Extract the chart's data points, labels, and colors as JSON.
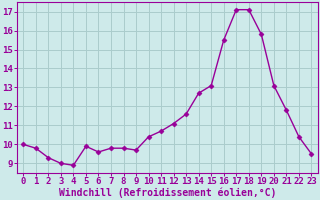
{
  "x": [
    0,
    1,
    2,
    3,
    4,
    5,
    6,
    7,
    8,
    9,
    10,
    11,
    12,
    13,
    14,
    15,
    16,
    17,
    18,
    19,
    20,
    21,
    22,
    23
  ],
  "y": [
    10.0,
    9.8,
    9.3,
    9.0,
    8.9,
    9.9,
    9.6,
    9.8,
    9.8,
    9.7,
    10.4,
    10.7,
    11.1,
    11.6,
    12.7,
    13.1,
    15.5,
    17.1,
    17.1,
    15.8,
    13.1,
    11.8,
    10.4,
    9.5
  ],
  "line_color": "#990099",
  "marker": "D",
  "marker_size": 2.5,
  "line_width": 1.0,
  "bg_color": "#ceeaea",
  "grid_color": "#aacccc",
  "xlabel": "Windchill (Refroidissement éolien,°C)",
  "xlabel_fontsize": 7,
  "tick_fontsize": 6.5,
  "xlim": [
    -0.5,
    23.5
  ],
  "ylim": [
    8.5,
    17.5
  ],
  "yticks": [
    9,
    10,
    11,
    12,
    13,
    14,
    15,
    16,
    17
  ],
  "xticks": [
    0,
    1,
    2,
    3,
    4,
    5,
    6,
    7,
    8,
    9,
    10,
    11,
    12,
    13,
    14,
    15,
    16,
    17,
    18,
    19,
    20,
    21,
    22,
    23
  ],
  "spine_color": "#990099",
  "axis_color": "#990099"
}
